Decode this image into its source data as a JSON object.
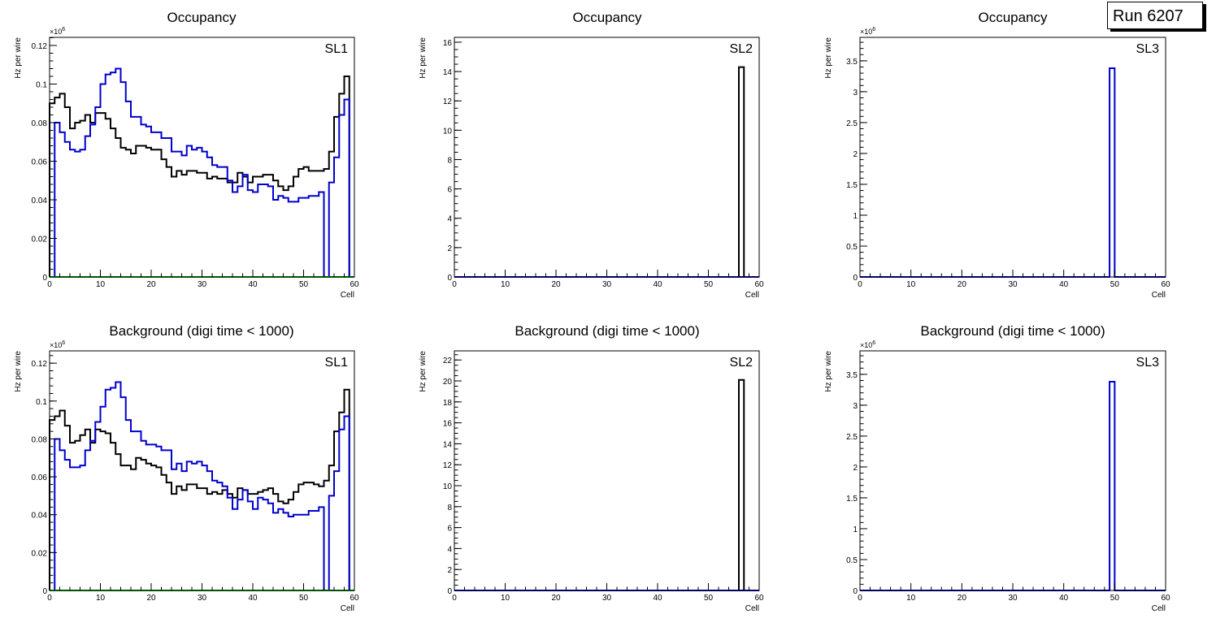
{
  "run_label": "Run 6207",
  "colors": {
    "black": "#000000",
    "blue": "#0000cc",
    "green": "#00aa00"
  },
  "chart_data": [
    {
      "type": "line",
      "title": "Occupancy",
      "label": "SL1",
      "xlabel": "Cell",
      "ylabel": "Hz per wire",
      "exponent": "×10",
      "exponent_power": "6",
      "xlim": [
        0,
        60
      ],
      "ylim": [
        0,
        0.1242
      ],
      "xticks": [
        "0",
        "10",
        "20",
        "30",
        "40",
        "50",
        "60"
      ],
      "yticks": [
        "0",
        "0.02",
        "0.04",
        "0.06",
        "0.08",
        "0.1",
        "0.12"
      ],
      "ytick_values": [
        0,
        0.02,
        0.04,
        0.06,
        0.08,
        0.1,
        0.12
      ],
      "yminor": 0.004,
      "series": [
        {
          "name": "black",
          "color": "#000000",
          "values": [
            0.09,
            0.093,
            0.095,
            0.088,
            0.077,
            0.08,
            0.081,
            0.084,
            0.08,
            0.085,
            0.085,
            0.082,
            0.077,
            0.072,
            0.067,
            0.066,
            0.064,
            0.068,
            0.068,
            0.067,
            0.066,
            0.066,
            0.061,
            0.057,
            0.052,
            0.055,
            0.053,
            0.055,
            0.055,
            0.054,
            0.054,
            0.051,
            0.052,
            0.051,
            0.051,
            0.049,
            0.049,
            0.054,
            0.052,
            0.049,
            0.052,
            0.052,
            0.053,
            0.053,
            0.05,
            0.047,
            0.045,
            0.047,
            0.052,
            0.056,
            0.057,
            0.055,
            0.055,
            0.055,
            0.056,
            0.065,
            0.083,
            0.095,
            0.104,
            0
          ]
        },
        {
          "name": "blue",
          "color": "#0000cc",
          "values": [
            0,
            0.08,
            0.075,
            0.07,
            0.066,
            0.065,
            0.066,
            0.073,
            0.079,
            0.088,
            0.1,
            0.105,
            0.106,
            0.108,
            0.101,
            0.091,
            0.083,
            0.083,
            0.079,
            0.078,
            0.075,
            0.075,
            0.072,
            0.072,
            0.065,
            0.065,
            0.063,
            0.068,
            0.066,
            0.067,
            0.065,
            0.062,
            0.058,
            0.057,
            0.057,
            0.05,
            0.044,
            0.047,
            0.053,
            0.045,
            0.044,
            0.048,
            0.048,
            0.047,
            0.04,
            0.042,
            0.041,
            0.039,
            0.039,
            0.041,
            0.041,
            0.042,
            0.042,
            0.044,
            0,
            0.049,
            0.062,
            0.084,
            0.092,
            0
          ]
        },
        {
          "name": "green",
          "color": "#00aa00",
          "values": "zeros"
        }
      ]
    },
    {
      "type": "line",
      "title": "Occupancy",
      "label": "SL2",
      "xlabel": "Cell",
      "ylabel": "Hz per wire",
      "xlim": [
        0,
        60
      ],
      "ylim": [
        0,
        16.33
      ],
      "xticks": [
        "0",
        "10",
        "20",
        "30",
        "40",
        "50",
        "60"
      ],
      "yticks": [
        "0",
        "2",
        "4",
        "6",
        "8",
        "10",
        "12",
        "14",
        "16"
      ],
      "ytick_values": [
        0,
        2,
        4,
        6,
        8,
        10,
        12,
        14,
        16
      ],
      "yminor": 0.5,
      "series": [
        {
          "name": "black",
          "color": "#000000",
          "spike_bin": 56,
          "spike_value": 14.3
        },
        {
          "name": "blue",
          "color": "#0000cc",
          "values": "zeros"
        }
      ]
    },
    {
      "type": "line",
      "title": "Occupancy",
      "label": "SL3",
      "xlabel": "Cell",
      "ylabel": "Hz per wire",
      "exponent": "×10",
      "exponent_power": "6",
      "xlim": [
        0,
        60
      ],
      "ylim": [
        0,
        3.88
      ],
      "xticks": [
        "0",
        "10",
        "20",
        "30",
        "40",
        "50",
        "60"
      ],
      "yticks": [
        "0",
        "0.5",
        "1",
        "1.5",
        "2",
        "2.5",
        "3",
        "3.5"
      ],
      "ytick_values": [
        0,
        0.5,
        1,
        1.5,
        2,
        2.5,
        3,
        3.5
      ],
      "yminor": 0.1,
      "series": [
        {
          "name": "blue",
          "color": "#0000cc",
          "spike_bin": 49,
          "spike_value": 3.38
        }
      ]
    },
    {
      "type": "line",
      "title": "Background (digi time < 1000)",
      "label": "SL1",
      "xlabel": "Cell",
      "ylabel": "Hz per wire",
      "exponent": "×10",
      "exponent_power": "6",
      "xlim": [
        0,
        60
      ],
      "ylim": [
        0,
        0.1265
      ],
      "xticks": [
        "0",
        "10",
        "20",
        "30",
        "40",
        "50",
        "60"
      ],
      "yticks": [
        "0",
        "0.02",
        "0.04",
        "0.06",
        "0.08",
        "0.1",
        "0.12"
      ],
      "ytick_values": [
        0,
        0.02,
        0.04,
        0.06,
        0.08,
        0.1,
        0.12
      ],
      "yminor": 0.004,
      "series": [
        {
          "name": "black",
          "color": "#000000",
          "values": [
            0.09,
            0.092,
            0.095,
            0.087,
            0.078,
            0.079,
            0.082,
            0.085,
            0.078,
            0.085,
            0.084,
            0.083,
            0.078,
            0.072,
            0.066,
            0.066,
            0.064,
            0.07,
            0.069,
            0.067,
            0.066,
            0.065,
            0.061,
            0.057,
            0.051,
            0.055,
            0.053,
            0.056,
            0.056,
            0.054,
            0.054,
            0.051,
            0.052,
            0.051,
            0.053,
            0.051,
            0.049,
            0.054,
            0.053,
            0.051,
            0.051,
            0.052,
            0.053,
            0.054,
            0.051,
            0.047,
            0.046,
            0.048,
            0.052,
            0.056,
            0.057,
            0.057,
            0.056,
            0.055,
            0.058,
            0.066,
            0.084,
            0.094,
            0.106,
            0
          ]
        },
        {
          "name": "blue",
          "color": "#0000cc",
          "values": [
            0,
            0.08,
            0.074,
            0.069,
            0.065,
            0.065,
            0.066,
            0.074,
            0.079,
            0.089,
            0.097,
            0.106,
            0.107,
            0.11,
            0.102,
            0.09,
            0.084,
            0.084,
            0.079,
            0.077,
            0.077,
            0.076,
            0.074,
            0.074,
            0.064,
            0.067,
            0.063,
            0.068,
            0.067,
            0.068,
            0.066,
            0.063,
            0.058,
            0.057,
            0.055,
            0.049,
            0.043,
            0.048,
            0.053,
            0.047,
            0.043,
            0.049,
            0.048,
            0.046,
            0.041,
            0.043,
            0.041,
            0.039,
            0.04,
            0.04,
            0.04,
            0.042,
            0.042,
            0.044,
            0,
            0.05,
            0.063,
            0.085,
            0.092,
            0
          ]
        },
        {
          "name": "green",
          "color": "#00aa00",
          "values": "zeros"
        }
      ]
    },
    {
      "type": "line",
      "title": "Background (digi time < 1000)",
      "label": "SL2",
      "xlabel": "Cell",
      "ylabel": "Hz per wire",
      "xlim": [
        0,
        60
      ],
      "ylim": [
        0,
        22.87
      ],
      "xticks": [
        "0",
        "10",
        "20",
        "30",
        "40",
        "50",
        "60"
      ],
      "yticks": [
        "0",
        "2",
        "4",
        "6",
        "8",
        "10",
        "12",
        "14",
        "16",
        "18",
        "20",
        "22"
      ],
      "ytick_values": [
        0,
        2,
        4,
        6,
        8,
        10,
        12,
        14,
        16,
        18,
        20,
        22
      ],
      "yminor": 0.5,
      "series": [
        {
          "name": "black",
          "color": "#000000",
          "spike_bin": 56,
          "spike_value": 20.1
        },
        {
          "name": "blue",
          "color": "#0000cc",
          "values": "zeros"
        }
      ]
    },
    {
      "type": "line",
      "title": "Background (digi time < 1000)",
      "label": "SL3",
      "xlabel": "Cell",
      "ylabel": "Hz per wire",
      "exponent": "×10",
      "exponent_power": "6",
      "xlim": [
        0,
        60
      ],
      "ylim": [
        0,
        3.88
      ],
      "xticks": [
        "0",
        "10",
        "20",
        "30",
        "40",
        "50",
        "60"
      ],
      "yticks": [
        "0",
        "0.5",
        "1",
        "1.5",
        "2",
        "2.5",
        "3",
        "3.5"
      ],
      "ytick_values": [
        0,
        0.5,
        1,
        1.5,
        2,
        2.5,
        3,
        3.5
      ],
      "yminor": 0.1,
      "series": [
        {
          "name": "blue",
          "color": "#0000cc",
          "spike_bin": 49,
          "spike_value": 3.38
        }
      ]
    }
  ]
}
